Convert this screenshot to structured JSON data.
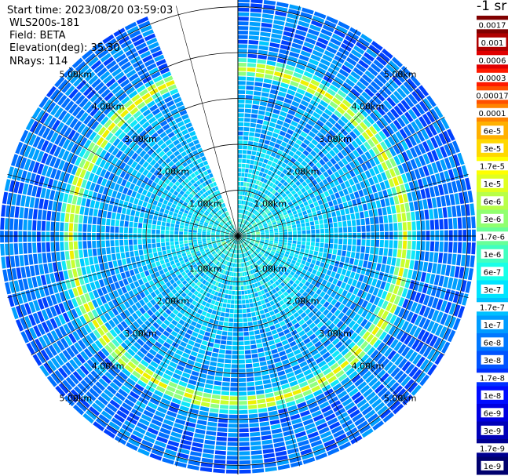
{
  "header": {
    "start_time": "Start time: 2023/08/20 03:59:03",
    "instrument": "WLS200s-181",
    "field": "Field: BETA",
    "elevation": "Elevation(deg): 35.30",
    "nrays": "NRays: 114"
  },
  "colorbar": {
    "unit_label": "-1 sr",
    "ticks": [
      "0.0017",
      "0.001",
      "0.0006",
      "0.0003",
      "0.00017",
      "0.0001",
      "6e-5",
      "3e-5",
      "1.7e-5",
      "1e-5",
      "6e-6",
      "3e-6",
      "1.7e-6",
      "1e-6",
      "6e-7",
      "3e-7",
      "1.7e-7",
      "1e-7",
      "6e-8",
      "3e-8",
      "1.7e-8",
      "1e-8",
      "6e-9",
      "3e-9",
      "1.7e-9",
      "1e-9"
    ],
    "colors": [
      "#800000",
      "#b00000",
      "#e00000",
      "#ff1a00",
      "#ff5000",
      "#ff8400",
      "#ffb000",
      "#ffd800",
      "#ffff00",
      "#e0ff20",
      "#b8ff48",
      "#90ff70",
      "#68ff98",
      "#40ffc0",
      "#18ffe8",
      "#00e4ff",
      "#00c0ff",
      "#009cff",
      "#0078ff",
      "#0054ff",
      "#0030ff",
      "#000cff",
      "#0000e0",
      "#0000b8",
      "#000090",
      "#00006e"
    ]
  },
  "chart_data": {
    "type": "ppi",
    "field": "BETA",
    "elevation_deg": 35.3,
    "n_rays": 114,
    "max_range_km": 5.2,
    "range_rings_km": [
      1,
      2,
      3,
      4,
      5
    ],
    "ring_labels": [
      "1.00km",
      "2.00km",
      "3.00km",
      "4.00km",
      "5.00km"
    ],
    "azimuth_lines_deg": [
      0,
      15,
      30,
      45,
      60,
      75,
      90,
      105,
      120,
      135,
      150,
      165,
      180,
      195,
      210,
      225,
      240,
      255,
      270,
      285,
      300,
      315,
      330,
      345
    ],
    "missing_sector_deg": [
      337,
      360
    ],
    "rings": [
      {
        "range_km": [
          0.0,
          0.5
        ],
        "typical": "3e-7",
        "note": "dense near-field, light blue"
      },
      {
        "range_km": [
          0.5,
          2.0
        ],
        "typical": "1.7e-7",
        "note": "cyan / light blue"
      },
      {
        "range_km": [
          2.0,
          3.2
        ],
        "typical": "1e-7",
        "note": "mixed blues"
      },
      {
        "range_km": [
          3.2,
          4.2
        ],
        "typical": "3e-6",
        "note": "yellow-green aerosol layer ring"
      },
      {
        "range_km": [
          4.2,
          5.2
        ],
        "typical": "3e-8",
        "note": "blue with scattered cyan"
      }
    ]
  }
}
